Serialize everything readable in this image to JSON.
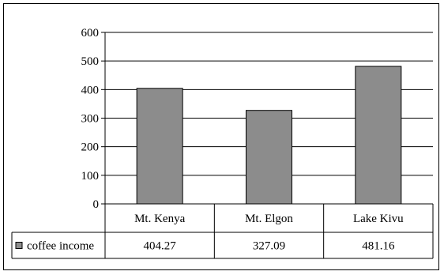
{
  "chart_data": {
    "type": "bar",
    "categories": [
      "Mt. Kenya",
      "Mt. Elgon",
      "Lake Kivu"
    ],
    "series": [
      {
        "name": "coffee income",
        "values": [
          404.27,
          327.09,
          481.16
        ],
        "value_labels": [
          "404.27",
          "327.09",
          "481.16"
        ]
      }
    ],
    "ylim": [
      0,
      600
    ],
    "yticks": [
      "0",
      "100",
      "200",
      "300",
      "400",
      "500",
      "600"
    ],
    "grid": true,
    "legend": "data-table",
    "colors": {
      "bar": "#8c8c8c",
      "bar_stroke": "#000000",
      "grid": "#000000"
    }
  }
}
